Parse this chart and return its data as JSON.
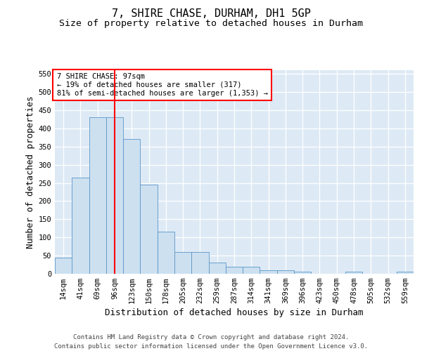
{
  "title": "7, SHIRE CHASE, DURHAM, DH1 5GP",
  "subtitle": "Size of property relative to detached houses in Durham",
  "xlabel": "Distribution of detached houses by size in Durham",
  "ylabel": "Number of detached properties",
  "categories": [
    "14sqm",
    "41sqm",
    "69sqm",
    "96sqm",
    "123sqm",
    "150sqm",
    "178sqm",
    "205sqm",
    "232sqm",
    "259sqm",
    "287sqm",
    "314sqm",
    "341sqm",
    "369sqm",
    "396sqm",
    "423sqm",
    "450sqm",
    "478sqm",
    "505sqm",
    "532sqm",
    "559sqm"
  ],
  "values": [
    45,
    265,
    430,
    430,
    370,
    245,
    115,
    60,
    60,
    30,
    20,
    20,
    10,
    10,
    5,
    0,
    0,
    5,
    0,
    0,
    5
  ],
  "bar_color": "#cce0f0",
  "bar_edge_color": "#5b96c8",
  "red_line_x": 3.0,
  "annotation_text": "7 SHIRE CHASE: 97sqm\n← 19% of detached houses are smaller (317)\n81% of semi-detached houses are larger (1,353) →",
  "ylim": [
    0,
    560
  ],
  "yticks": [
    0,
    50,
    100,
    150,
    200,
    250,
    300,
    350,
    400,
    450,
    500,
    550
  ],
  "footer_line1": "Contains HM Land Registry data © Crown copyright and database right 2024.",
  "footer_line2": "Contains public sector information licensed under the Open Government Licence v3.0.",
  "bg_color": "#ddeaf5",
  "fig_width": 6.0,
  "fig_height": 5.0,
  "dpi": 100,
  "title_fontsize": 11,
  "subtitle_fontsize": 9.5,
  "axis_label_fontsize": 9,
  "tick_fontsize": 7.5,
  "footer_fontsize": 6.5,
  "annot_fontsize": 7.5
}
